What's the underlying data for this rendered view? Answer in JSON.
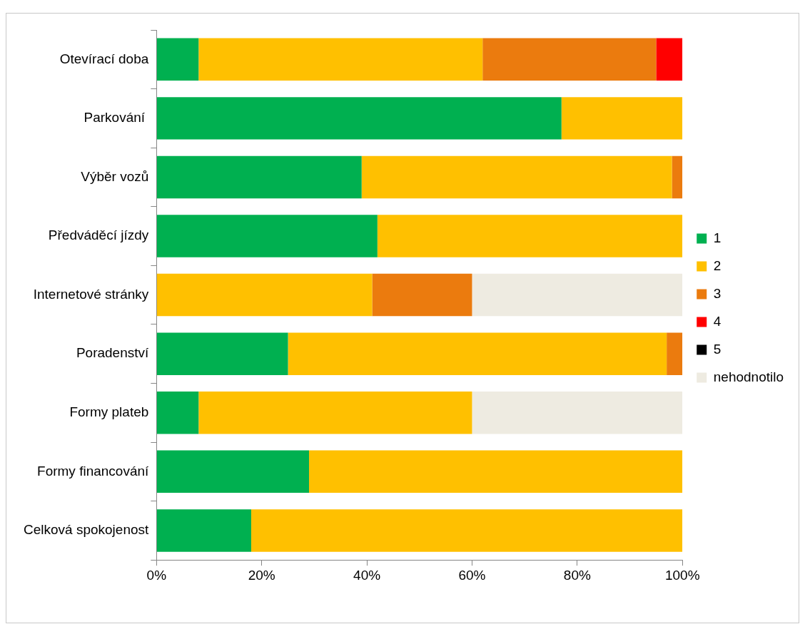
{
  "chart_data": {
    "type": "bar",
    "orientation": "horizontal",
    "stacked": true,
    "grid": false,
    "legend": "right",
    "categories": [
      "Otevírací doba",
      "Parkování ",
      "Výběr vozů",
      "Předváděcí jízdy",
      "Internetové stránky",
      "Poradenství",
      "Formy plateb",
      "Formy financování",
      "Celková spokojenost"
    ],
    "series": [
      {
        "name": "1",
        "color": "#00b050",
        "values": [
          8,
          77,
          39,
          42,
          0,
          25,
          8,
          29,
          18
        ]
      },
      {
        "name": "2",
        "color": "#ffc000",
        "values": [
          54,
          23,
          59,
          58,
          41,
          72,
          52,
          71,
          82
        ]
      },
      {
        "name": "3",
        "color": "#eb7b0e",
        "values": [
          33,
          0,
          2,
          0,
          19,
          3,
          0,
          0,
          0
        ]
      },
      {
        "name": "4",
        "color": "#ff0000",
        "values": [
          5,
          0,
          0,
          0,
          0,
          0,
          0,
          0,
          0
        ]
      },
      {
        "name": "5",
        "color": "#000000",
        "values": [
          0,
          0,
          0,
          0,
          0,
          0,
          0,
          0,
          0
        ]
      },
      {
        "name": "nehodnotilo",
        "color": "#eeebe1",
        "values": [
          0,
          0,
          0,
          0,
          40,
          0,
          40,
          0,
          0
        ]
      }
    ],
    "xlim": [
      0,
      100
    ],
    "xticks": [
      {
        "value": 0,
        "label": "0%"
      },
      {
        "value": 20,
        "label": "20%"
      },
      {
        "value": 40,
        "label": "40%"
      },
      {
        "value": 60,
        "label": "60%"
      },
      {
        "value": 80,
        "label": "80%"
      },
      {
        "value": 100,
        "label": "100%"
      }
    ]
  }
}
